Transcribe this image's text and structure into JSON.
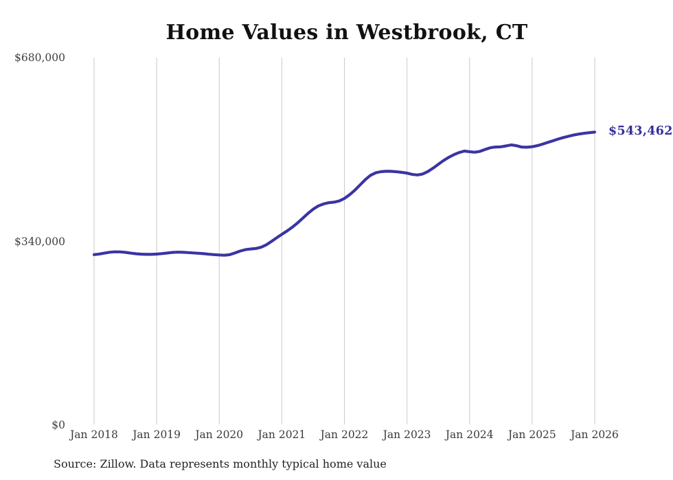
{
  "title": "Home Values in Westbrook, CT",
  "latest_value_label": "$543,462",
  "source_note": "Source: Zillow. Data represents monthly typical home value",
  "y_axis": {
    "labels": [
      "$680,000",
      "$340,000",
      "$0"
    ],
    "values": [
      680000,
      340000,
      0
    ]
  },
  "x_axis": {
    "labels": [
      "Jan 2018",
      "Jan 2019",
      "Jan 2020",
      "Jan 2021",
      "Jan 2022",
      "Jan 2023",
      "Jan 2024",
      "Jan 2025",
      "Jan 2026"
    ]
  },
  "colors": {
    "line": "#3a34a3",
    "latest_label": "#332e9c",
    "grid": "#c9c9c9",
    "axis_text": "#3f3f3f",
    "title_text": "#111111",
    "background": "#ffffff"
  },
  "chart_data": {
    "type": "line",
    "title": "Home Values in Westbrook, CT",
    "xlabel": "",
    "ylabel": "",
    "ylim": [
      0,
      680000
    ],
    "grid": "vertical-only",
    "legend": "none",
    "frequency": "monthly",
    "x": [
      "2018-01",
      "2018-02",
      "2018-03",
      "2018-04",
      "2018-05",
      "2018-06",
      "2018-07",
      "2018-08",
      "2018-09",
      "2018-10",
      "2018-11",
      "2018-12",
      "2019-01",
      "2019-02",
      "2019-03",
      "2019-04",
      "2019-05",
      "2019-06",
      "2019-07",
      "2019-08",
      "2019-09",
      "2019-10",
      "2019-11",
      "2019-12",
      "2020-01",
      "2020-02",
      "2020-03",
      "2020-04",
      "2020-05",
      "2020-06",
      "2020-07",
      "2020-08",
      "2020-09",
      "2020-10",
      "2020-11",
      "2020-12",
      "2021-01",
      "2021-02",
      "2021-03",
      "2021-04",
      "2021-05",
      "2021-06",
      "2021-07",
      "2021-08",
      "2021-09",
      "2021-10",
      "2021-11",
      "2021-12",
      "2022-01",
      "2022-02",
      "2022-03",
      "2022-04",
      "2022-05",
      "2022-06",
      "2022-07",
      "2022-08",
      "2022-09",
      "2022-10",
      "2022-11",
      "2022-12",
      "2023-01",
      "2023-02",
      "2023-03",
      "2023-04",
      "2023-05",
      "2023-06",
      "2023-07",
      "2023-08",
      "2023-09",
      "2023-10",
      "2023-11",
      "2023-12",
      "2024-01",
      "2024-02",
      "2024-03",
      "2024-04",
      "2024-05",
      "2024-06",
      "2024-07",
      "2024-08",
      "2024-09",
      "2024-10",
      "2024-11",
      "2024-12",
      "2025-01",
      "2025-02",
      "2025-03",
      "2025-04",
      "2025-05",
      "2025-06",
      "2025-07",
      "2025-08",
      "2025-09",
      "2025-10",
      "2025-11",
      "2025-12",
      "2026-01"
    ],
    "values": [
      316800,
      317900,
      319600,
      321200,
      322000,
      321800,
      320900,
      319600,
      318400,
      317600,
      317200,
      317300,
      317800,
      318600,
      319700,
      320800,
      321300,
      321100,
      320500,
      319900,
      319300,
      318500,
      317500,
      316700,
      316100,
      315600,
      316600,
      319800,
      323400,
      325900,
      327200,
      328100,
      330400,
      334800,
      341200,
      347900,
      354300,
      360600,
      367400,
      375300,
      384100,
      392900,
      400800,
      406800,
      410600,
      412800,
      413900,
      416000,
      420700,
      427600,
      436000,
      445700,
      455500,
      463600,
      468300,
      470300,
      471000,
      470900,
      470200,
      469000,
      467600,
      465300,
      464200,
      465900,
      470500,
      476800,
      483900,
      490900,
      496900,
      501800,
      505800,
      508400,
      507300,
      506200,
      507900,
      511500,
      514600,
      515900,
      516300,
      517900,
      519800,
      518300,
      515800,
      515500,
      516400,
      518500,
      521300,
      524400,
      527500,
      530700,
      533400,
      535900,
      538100,
      539900,
      541300,
      542500,
      543462
    ],
    "series_name": "Typical home value",
    "latest_value": 543462
  }
}
